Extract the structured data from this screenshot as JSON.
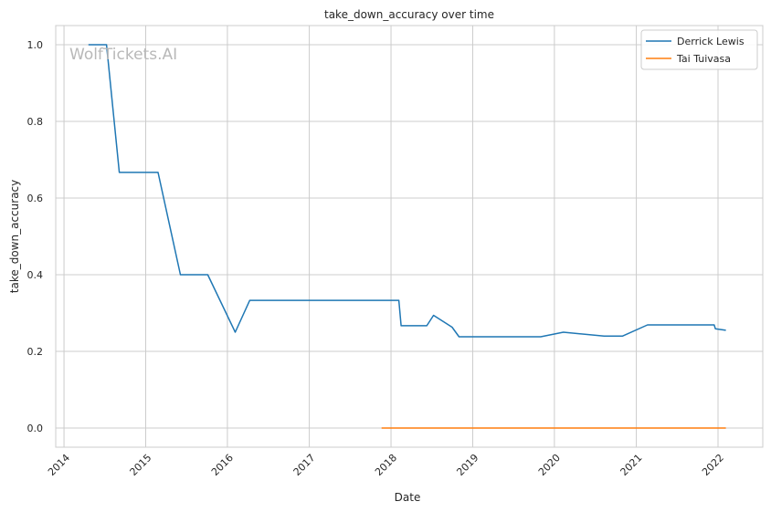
{
  "chart_data": {
    "type": "line",
    "title": "take_down_accuracy over time",
    "xlabel": "Date",
    "ylabel": "take_down_accuracy",
    "watermark": "WolfTickets.AI",
    "x_ticks": [
      "2014",
      "2015",
      "2016",
      "2017",
      "2018",
      "2019",
      "2020",
      "2021",
      "2022"
    ],
    "y_ticks": [
      "0.0",
      "0.2",
      "0.4",
      "0.6",
      "0.8",
      "1.0"
    ],
    "xlim": [
      "2013-11-25",
      "2022-07-20"
    ],
    "ylim": [
      -0.05,
      1.05
    ],
    "grid": true,
    "legend_position": "top-right",
    "series": [
      {
        "name": "Derrick Lewis",
        "color": "#1f77b4",
        "points": [
          [
            "2014-04-20",
            1.0
          ],
          [
            "2014-07-10",
            1.0
          ],
          [
            "2014-09-05",
            0.667
          ],
          [
            "2015-02-25",
            0.667
          ],
          [
            "2015-06-05",
            0.4
          ],
          [
            "2015-10-05",
            0.4
          ],
          [
            "2016-02-05",
            0.25
          ],
          [
            "2016-04-10",
            0.333
          ],
          [
            "2018-02-05",
            0.333
          ],
          [
            "2018-02-15",
            0.267
          ],
          [
            "2018-06-10",
            0.267
          ],
          [
            "2018-07-10",
            0.294
          ],
          [
            "2018-10-01",
            0.263
          ],
          [
            "2018-11-01",
            0.238
          ],
          [
            "2019-11-01",
            0.238
          ],
          [
            "2020-02-10",
            0.25
          ],
          [
            "2020-08-10",
            0.24
          ],
          [
            "2020-11-01",
            0.24
          ],
          [
            "2021-02-20",
            0.269
          ],
          [
            "2021-12-15",
            0.269
          ],
          [
            "2021-12-20",
            0.259
          ],
          [
            "2022-02-05",
            0.255
          ]
        ]
      },
      {
        "name": "Tai Tuivasa",
        "color": "#ff7f0e",
        "points": [
          [
            "2017-11-20",
            0.0
          ],
          [
            "2022-02-05",
            0.0
          ]
        ]
      }
    ]
  }
}
